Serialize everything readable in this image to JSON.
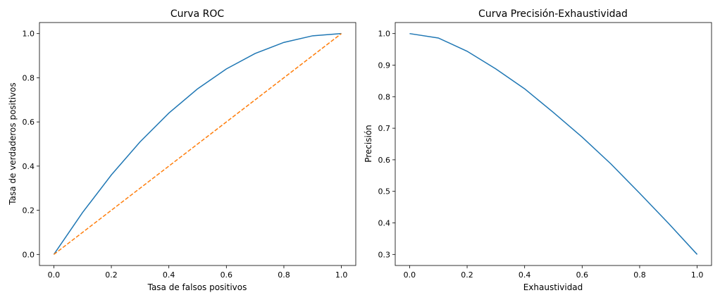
{
  "chart_data": [
    {
      "type": "line",
      "title": "Curva ROC",
      "xlabel": "Tasa de falsos positivos",
      "ylabel": "Tasa de verdaderos positivos",
      "xlim": [
        -0.05,
        1.05
      ],
      "ylim": [
        -0.05,
        1.05
      ],
      "xticks": [
        0.0,
        0.2,
        0.4,
        0.6,
        0.8,
        1.0
      ],
      "yticks": [
        0.0,
        0.2,
        0.4,
        0.6,
        0.8,
        1.0
      ],
      "xtick_labels": [
        "0.0",
        "0.2",
        "0.4",
        "0.6",
        "0.8",
        "1.0"
      ],
      "ytick_labels": [
        "0.0",
        "0.2",
        "0.4",
        "0.6",
        "0.8",
        "1.0"
      ],
      "grid": false,
      "series": [
        {
          "color": "#1f77b4",
          "style": "solid",
          "x": [
            0.0,
            0.1,
            0.2,
            0.3,
            0.4,
            0.5,
            0.6,
            0.7,
            0.8,
            0.9,
            1.0
          ],
          "y": [
            0.0,
            0.19,
            0.36,
            0.51,
            0.64,
            0.75,
            0.84,
            0.91,
            0.96,
            0.99,
            1.0
          ]
        },
        {
          "color": "#ff7f0e",
          "style": "dashed",
          "x": [
            0.0,
            1.0
          ],
          "y": [
            0.0,
            1.0
          ]
        }
      ]
    },
    {
      "type": "line",
      "title": "Curva Precisión-Exhaustividad",
      "xlabel": "Exhaustividad",
      "ylabel": "Precisión",
      "xlim": [
        -0.05,
        1.05
      ],
      "ylim": [
        0.265,
        1.035
      ],
      "xticks": [
        0.0,
        0.2,
        0.4,
        0.6,
        0.8,
        1.0
      ],
      "yticks": [
        0.3,
        0.4,
        0.5,
        0.6,
        0.7,
        0.8,
        0.9,
        1.0
      ],
      "xtick_labels": [
        "0.0",
        "0.2",
        "0.4",
        "0.6",
        "0.8",
        "1.0"
      ],
      "ytick_labels": [
        "0.3",
        "0.4",
        "0.5",
        "0.6",
        "0.7",
        "0.8",
        "0.9",
        "1.0"
      ],
      "grid": false,
      "series": [
        {
          "color": "#1f77b4",
          "style": "solid",
          "x": [
            0.0,
            0.1,
            0.2,
            0.3,
            0.4,
            0.5,
            0.6,
            0.7,
            0.8,
            0.9,
            1.0
          ],
          "y": [
            1.0,
            0.986,
            0.944,
            0.888,
            0.825,
            0.75,
            0.672,
            0.587,
            0.494,
            0.399,
            0.3
          ]
        }
      ]
    }
  ]
}
